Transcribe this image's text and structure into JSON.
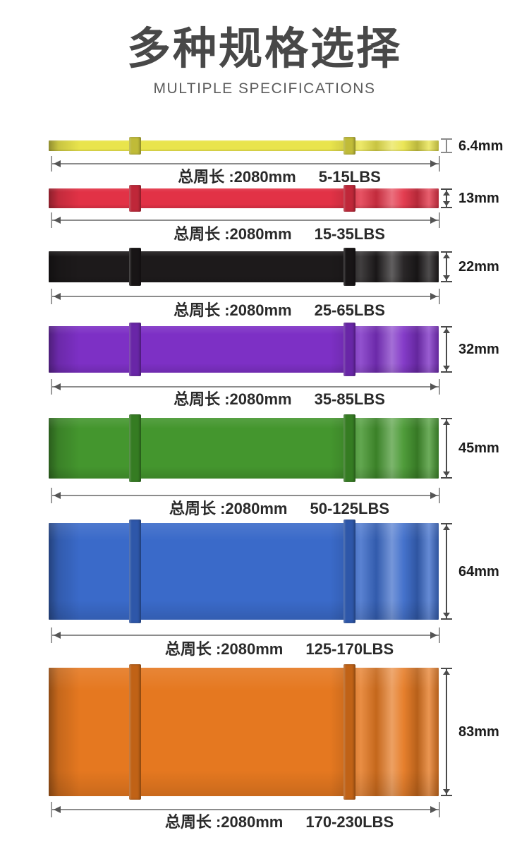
{
  "header": {
    "title": "多种规格选择",
    "subtitle": "MULTIPLE SPECIFICATIONS"
  },
  "bands": [
    {
      "color_name": "yellow",
      "color": "#e9e44c",
      "width_label": "6.4mm",
      "circumference_label": "总周长 :2080mm",
      "resistance_label": "5-15LBS"
    },
    {
      "color_name": "red",
      "color": "#e23246",
      "width_label": "13mm",
      "circumference_label": "总周长 :2080mm",
      "resistance_label": "15-35LBS"
    },
    {
      "color_name": "black",
      "color": "#1d1a1b",
      "width_label": "22mm",
      "circumference_label": "总周长 :2080mm",
      "resistance_label": "25-65LBS"
    },
    {
      "color_name": "purple",
      "color": "#7d30c5",
      "width_label": "32mm",
      "circumference_label": "总周长 :2080mm",
      "resistance_label": "35-85LBS"
    },
    {
      "color_name": "green",
      "color": "#44962e",
      "width_label": "45mm",
      "circumference_label": "总周长 :2080mm",
      "resistance_label": "50-125LBS"
    },
    {
      "color_name": "blue",
      "color": "#3a6ac9",
      "width_label": "64mm",
      "circumference_label": "总周长 :2080mm",
      "resistance_label": "125-170LBS"
    },
    {
      "color_name": "orange",
      "color": "#e57820",
      "width_label": "83mm",
      "circumference_label": "总周长 :2080mm",
      "resistance_label": "170-230LBS"
    }
  ]
}
